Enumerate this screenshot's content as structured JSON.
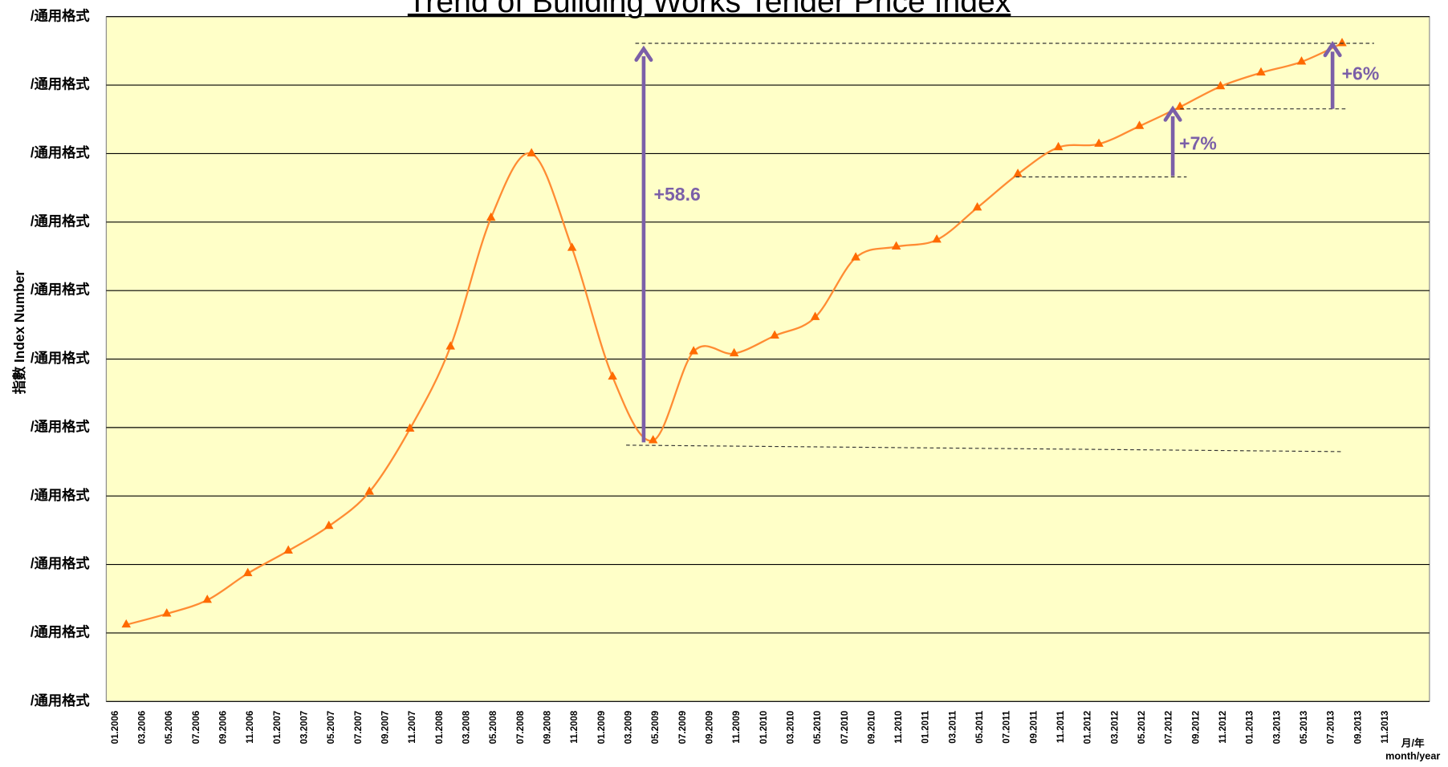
{
  "chart_data": {
    "type": "line",
    "title": "Trend of Building Works Tender Price Index",
    "y_label": "指數 Index Number",
    "x_label": [
      "月/年",
      "month/year"
    ],
    "categories": [
      "01.2006",
      null,
      "03.2006",
      null,
      "05.2006",
      null,
      "07.2006",
      null,
      "09.2006",
      null,
      "11.2006",
      null,
      "01.2007",
      null,
      "03.2007",
      null,
      "05.2007",
      null,
      "07.2007",
      null,
      "09.2007",
      null,
      "11.2007",
      null,
      "01.2008",
      null,
      "03.2008",
      null,
      "05.2008",
      null,
      "07.2008",
      null,
      "09.2008",
      null,
      "11.2008",
      null,
      "01.2009",
      null,
      "03.2009",
      null,
      "05.2009",
      null,
      "07.2009",
      null,
      "09.2009",
      null,
      "11.2009",
      null,
      "01.2010",
      null,
      "03.2010",
      null,
      "05.2010",
      null,
      "07.2010",
      null,
      "09.2010",
      null,
      "11.2010",
      null,
      "01.2011",
      null,
      "03.2011",
      null,
      "05.2011",
      null,
      "07.2011",
      null,
      "09.2011",
      null,
      "11.2011",
      null,
      "01.2012",
      null,
      "03.2012",
      null,
      "05.2012",
      null,
      "07.2012",
      null,
      "09.2012",
      null,
      "11.2012",
      null,
      "01.2013",
      null,
      "03.2013",
      null,
      "05.2013",
      null,
      "07.2013",
      null,
      "09.2013",
      null,
      "11.2013",
      null
    ],
    "series": [
      {
        "name": "Tender Price Index",
        "color": "#ff6a00",
        "values": [
          null,
          712,
          null,
          null,
          728,
          null,
          null,
          748,
          null,
          null,
          787,
          null,
          null,
          820,
          null,
          null,
          856,
          null,
          null,
          906,
          null,
          null,
          998,
          null,
          null,
          1118,
          null,
          null,
          1306,
          null,
          null,
          1400,
          null,
          null,
          1262,
          null,
          null,
          1074,
          null,
          null,
          981,
          null,
          null,
          1111,
          null,
          null,
          1108,
          null,
          null,
          1134,
          null,
          null,
          1161,
          null,
          null,
          1248,
          null,
          null,
          1264,
          null,
          null,
          1274,
          null,
          null,
          1321,
          null,
          null,
          1370,
          null,
          null,
          1409,
          null,
          null,
          1414,
          null,
          null,
          1440,
          null,
          null,
          1468,
          null,
          null,
          1498,
          null,
          null,
          1518,
          null,
          null,
          1534,
          null,
          null,
          1561,
          null,
          null,
          null,
          null
        ]
      }
    ],
    "ylim": [
      600,
      1600
    ],
    "yticks": [
      {
        "value": 600,
        "label": "/通用格式"
      },
      {
        "value": 700,
        "label": "/通用格式"
      },
      {
        "value": 800,
        "label": "/通用格式"
      },
      {
        "value": 900,
        "label": "/通用格式"
      },
      {
        "value": 1000,
        "label": "/通用格式"
      },
      {
        "value": 1100,
        "label": "/通用格式"
      },
      {
        "value": 1200,
        "label": "/通用格式"
      },
      {
        "value": 1300,
        "label": "/通用格式"
      },
      {
        "value": 1400,
        "label": "/通用格式"
      },
      {
        "value": 1500,
        "label": "/通用格式"
      },
      {
        "value": 1600,
        "label": "/通用格式"
      }
    ],
    "grid": true,
    "annotations": [
      "+58.6",
      "+7%",
      "+6%"
    ]
  }
}
